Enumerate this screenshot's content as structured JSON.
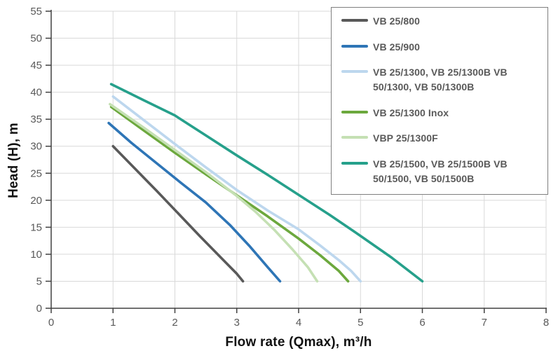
{
  "chart_data": {
    "type": "line",
    "title": "",
    "xlabel": "Flow rate (Qmax), m³/h",
    "ylabel": "Head (H), m",
    "xlim": [
      0,
      8
    ],
    "ylim": [
      0,
      55
    ],
    "xticks": [
      0,
      1,
      2,
      3,
      4,
      5,
      6,
      7,
      8
    ],
    "yticks": [
      0,
      5,
      10,
      15,
      20,
      25,
      30,
      35,
      40,
      45,
      50,
      55
    ],
    "grid": true,
    "legend_position": "top-right",
    "series": [
      {
        "name": "VB 25/800",
        "color": "#595959",
        "points": [
          [
            1.0,
            30.0
          ],
          [
            1.35,
            25.9
          ],
          [
            1.7,
            21.8
          ],
          [
            2.05,
            17.6
          ],
          [
            2.4,
            13.4
          ],
          [
            2.75,
            9.3
          ],
          [
            3.0,
            6.4
          ],
          [
            3.1,
            5.0
          ]
        ]
      },
      {
        "name": "VB 25/900",
        "color": "#2e75b6",
        "points": [
          [
            0.93,
            34.3
          ],
          [
            1.3,
            30.6
          ],
          [
            1.7,
            26.9
          ],
          [
            2.1,
            23.2
          ],
          [
            2.5,
            19.6
          ],
          [
            2.9,
            15.3
          ],
          [
            3.2,
            11.6
          ],
          [
            3.5,
            7.6
          ],
          [
            3.7,
            5.0
          ]
        ]
      },
      {
        "name": "VB 25/1300, VB 25/1300B  VB 50/1300, VB 50/1300B",
        "color": "#bdd7ee",
        "points": [
          [
            1.0,
            39.2
          ],
          [
            1.5,
            34.8
          ],
          [
            2.0,
            30.4
          ],
          [
            2.5,
            26.1
          ],
          [
            3.0,
            21.9
          ],
          [
            3.5,
            18.1
          ],
          [
            4.0,
            14.6
          ],
          [
            4.35,
            11.6
          ],
          [
            4.65,
            8.9
          ],
          [
            4.85,
            6.9
          ],
          [
            5.0,
            5.0
          ]
        ]
      },
      {
        "name": "VB 25/1300 Inox",
        "color": "#6ca83d",
        "points": [
          [
            0.97,
            37.3
          ],
          [
            1.5,
            32.9
          ],
          [
            2.0,
            28.8
          ],
          [
            2.5,
            24.8
          ],
          [
            3.0,
            20.9
          ],
          [
            3.5,
            17.0
          ],
          [
            4.0,
            12.9
          ],
          [
            4.35,
            9.8
          ],
          [
            4.65,
            6.9
          ],
          [
            4.8,
            5.0
          ]
        ]
      },
      {
        "name": "VBP 25/1300F",
        "color": "#c5e0b4",
        "points": [
          [
            0.95,
            37.8
          ],
          [
            1.5,
            33.4
          ],
          [
            2.0,
            29.3
          ],
          [
            2.5,
            25.2
          ],
          [
            3.0,
            20.8
          ],
          [
            3.3,
            17.9
          ],
          [
            3.6,
            14.6
          ],
          [
            3.9,
            10.9
          ],
          [
            4.15,
            7.6
          ],
          [
            4.3,
            5.0
          ]
        ]
      },
      {
        "name": "VB 25/1500, VB 25/1500B VB 50/1500, VB 50/1500B",
        "color": "#26a08b",
        "points": [
          [
            0.97,
            41.5
          ],
          [
            1.5,
            38.5
          ],
          [
            2.0,
            35.7
          ],
          [
            2.5,
            32.0
          ],
          [
            3.0,
            28.3
          ],
          [
            3.5,
            24.7
          ],
          [
            4.0,
            21.0
          ],
          [
            4.5,
            17.3
          ],
          [
            5.0,
            13.4
          ],
          [
            5.5,
            9.4
          ],
          [
            6.0,
            5.0
          ]
        ]
      }
    ]
  },
  "colors": {
    "grid": "#d9d9d9",
    "axis": "#404040",
    "tick_label": "#595959",
    "legend_border": "#7f7f7f",
    "legend_text": "#595959",
    "background": "#ffffff"
  }
}
